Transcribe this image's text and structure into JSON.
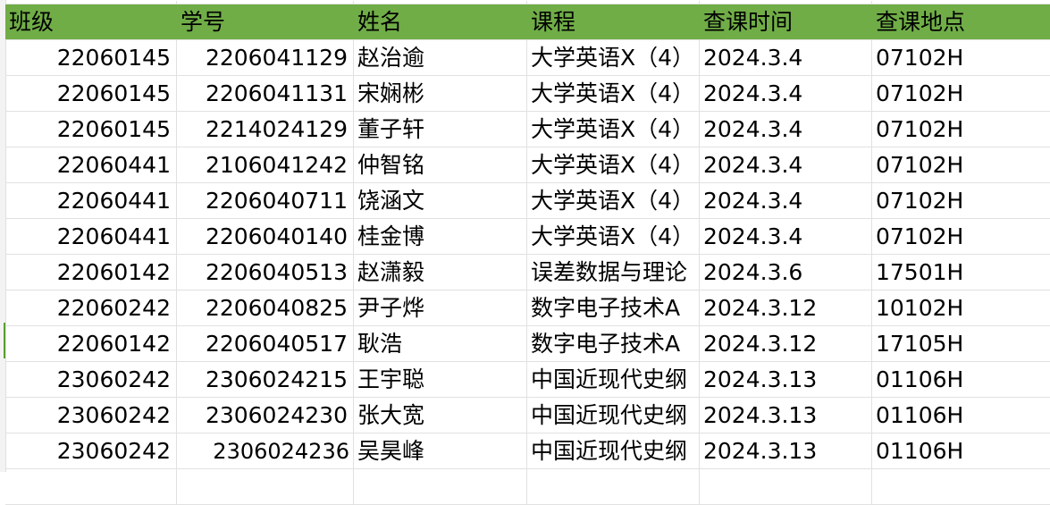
{
  "colors": {
    "header_bg": "#70ad47",
    "grid": "#e1e1e1",
    "selection_marker": "#5a9e32"
  },
  "headers": [
    "班级",
    "学号",
    "姓名",
    "课程",
    "查课时间",
    "查课地点"
  ],
  "rows": [
    [
      "22060145",
      "2206041129",
      "赵治逾",
      "大学英语X（4）",
      "2024.3.4",
      "07102H"
    ],
    [
      "22060145",
      "2206041131",
      "宋娴彬",
      "大学英语X（4）",
      "2024.3.4",
      "07102H"
    ],
    [
      "22060145",
      "2214024129",
      "董子轩",
      "大学英语X（4）",
      "2024.3.4",
      "07102H"
    ],
    [
      "22060441",
      "2106041242",
      "仲智铭",
      "大学英语X（4）",
      "2024.3.4",
      "07102H"
    ],
    [
      "22060441",
      "2206040711",
      "饶涵文",
      "大学英语X（4）",
      "2024.3.4",
      "07102H"
    ],
    [
      "22060441",
      "2206040140",
      "桂金博",
      "大学英语X（4）",
      "2024.3.4",
      "07102H"
    ],
    [
      "22060142",
      "2206040513",
      "赵潇毅",
      "误差数据与理论",
      "2024.3.6",
      "17501H"
    ],
    [
      "22060242",
      "2206040825",
      "尹子烨",
      "数字电子技术A",
      "2024.3.12",
      "10102H"
    ],
    [
      "22060142",
      "2206040517",
      "耿浩",
      "数字电子技术A",
      "2024.3.12",
      "17105H"
    ],
    [
      "23060242",
      "2306024215",
      "王宇聪",
      "中国近现代史纲",
      "2024.3.13",
      "01106H"
    ],
    [
      "23060242",
      "2306024230",
      "张大宽",
      "中国近现代史纲",
      "2024.3.13",
      "01106H"
    ],
    [
      "23060242",
      "2306024236",
      "吴昊峰",
      "中国近现代史纲",
      "2024.3.13",
      "01106H"
    ]
  ]
}
